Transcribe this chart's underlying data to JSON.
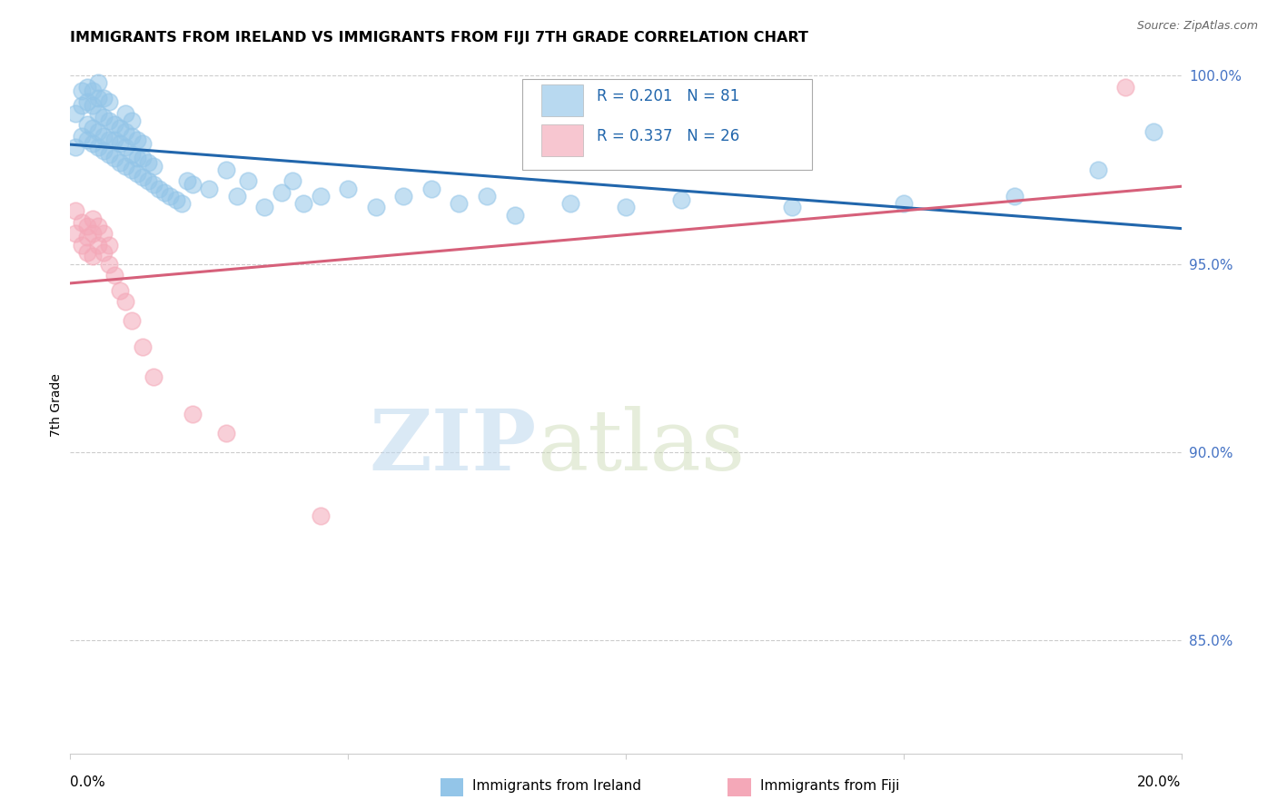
{
  "title": "IMMIGRANTS FROM IRELAND VS IMMIGRANTS FROM FIJI 7TH GRADE CORRELATION CHART",
  "source": "Source: ZipAtlas.com",
  "ylabel": "7th Grade",
  "x_min": 0.0,
  "x_max": 0.2,
  "y_min": 0.82,
  "y_max": 1.005,
  "ireland_color": "#93c5e8",
  "fiji_color": "#f4a8b8",
  "ireland_line_color": "#2166ac",
  "fiji_line_color": "#d6607a",
  "watermark_zip": "ZIP",
  "watermark_atlas": "atlas",
  "ireland_scatter_x": [
    0.001,
    0.001,
    0.002,
    0.002,
    0.002,
    0.003,
    0.003,
    0.003,
    0.003,
    0.004,
    0.004,
    0.004,
    0.004,
    0.005,
    0.005,
    0.005,
    0.005,
    0.005,
    0.006,
    0.006,
    0.006,
    0.006,
    0.007,
    0.007,
    0.007,
    0.007,
    0.008,
    0.008,
    0.008,
    0.009,
    0.009,
    0.009,
    0.01,
    0.01,
    0.01,
    0.01,
    0.011,
    0.011,
    0.011,
    0.011,
    0.012,
    0.012,
    0.012,
    0.013,
    0.013,
    0.013,
    0.014,
    0.014,
    0.015,
    0.015,
    0.016,
    0.017,
    0.018,
    0.019,
    0.02,
    0.021,
    0.022,
    0.025,
    0.028,
    0.03,
    0.032,
    0.035,
    0.038,
    0.04,
    0.042,
    0.045,
    0.05,
    0.055,
    0.06,
    0.065,
    0.07,
    0.075,
    0.08,
    0.09,
    0.1,
    0.11,
    0.13,
    0.15,
    0.17,
    0.185,
    0.195
  ],
  "ireland_scatter_y": [
    0.981,
    0.99,
    0.984,
    0.992,
    0.996,
    0.983,
    0.987,
    0.993,
    0.997,
    0.982,
    0.986,
    0.992,
    0.996,
    0.981,
    0.985,
    0.99,
    0.994,
    0.998,
    0.98,
    0.984,
    0.989,
    0.994,
    0.979,
    0.983,
    0.988,
    0.993,
    0.978,
    0.983,
    0.987,
    0.977,
    0.982,
    0.986,
    0.976,
    0.981,
    0.985,
    0.99,
    0.975,
    0.979,
    0.984,
    0.988,
    0.974,
    0.978,
    0.983,
    0.973,
    0.978,
    0.982,
    0.972,
    0.977,
    0.971,
    0.976,
    0.97,
    0.969,
    0.968,
    0.967,
    0.966,
    0.972,
    0.971,
    0.97,
    0.975,
    0.968,
    0.972,
    0.965,
    0.969,
    0.972,
    0.966,
    0.968,
    0.97,
    0.965,
    0.968,
    0.97,
    0.966,
    0.968,
    0.963,
    0.966,
    0.965,
    0.967,
    0.965,
    0.966,
    0.968,
    0.975,
    0.985
  ],
  "fiji_scatter_x": [
    0.001,
    0.001,
    0.002,
    0.002,
    0.003,
    0.003,
    0.003,
    0.004,
    0.004,
    0.004,
    0.005,
    0.005,
    0.006,
    0.006,
    0.007,
    0.007,
    0.008,
    0.009,
    0.01,
    0.011,
    0.013,
    0.015,
    0.022,
    0.028,
    0.045,
    0.19
  ],
  "fiji_scatter_y": [
    0.964,
    0.958,
    0.961,
    0.955,
    0.96,
    0.953,
    0.957,
    0.958,
    0.952,
    0.962,
    0.955,
    0.96,
    0.953,
    0.958,
    0.95,
    0.955,
    0.947,
    0.943,
    0.94,
    0.935,
    0.928,
    0.92,
    0.91,
    0.905,
    0.883,
    0.997
  ]
}
